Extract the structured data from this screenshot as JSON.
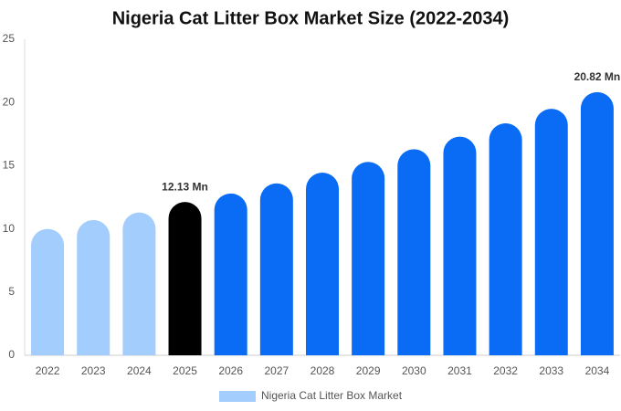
{
  "chart_data": {
    "type": "bar",
    "title": "Nigeria Cat Litter Box Market Size (2022-2034)",
    "categories": [
      "2022",
      "2023",
      "2024",
      "2025",
      "2026",
      "2027",
      "2028",
      "2029",
      "2030",
      "2031",
      "2032",
      "2033",
      "2034"
    ],
    "series": [
      {
        "name": "Nigeria Cat Litter Box Market",
        "color": "#a3cdfd",
        "values": [
          10.0,
          10.7,
          11.3,
          12.13,
          12.8,
          13.6,
          14.45,
          15.3,
          16.3,
          17.3,
          18.35,
          19.5,
          20.82
        ],
        "value_labels": [
          null,
          null,
          null,
          "12.13 Mn",
          null,
          null,
          null,
          null,
          null,
          null,
          null,
          null,
          "20.82 Mn"
        ],
        "colors": [
          "#a3cdfd",
          "#a3cdfd",
          "#a3cdfd",
          "#000000",
          "#0a6cf5",
          "#0a6cf5",
          "#0a6cf5",
          "#0a6cf5",
          "#0a6cf5",
          "#0a6cf5",
          "#0a6cf5",
          "#0a6cf5",
          "#0a6cf5"
        ]
      }
    ],
    "ylim": [
      0,
      25
    ],
    "yticks": [
      0,
      5,
      10,
      15,
      20,
      25
    ],
    "grid": false
  }
}
